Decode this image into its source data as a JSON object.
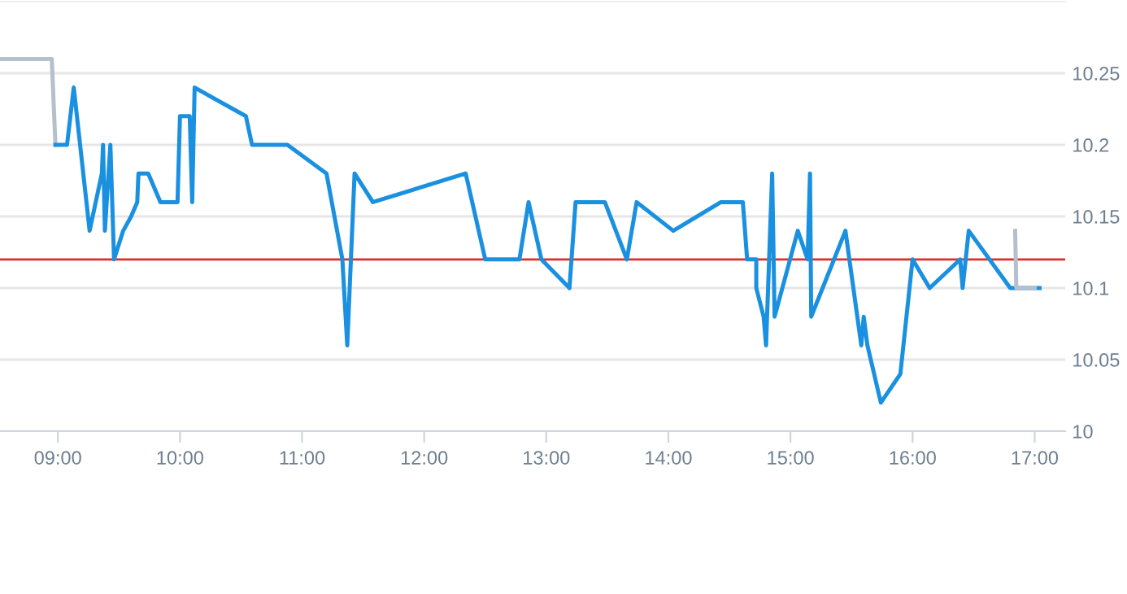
{
  "chart_data": {
    "type": "line",
    "series": [
      {
        "color": "#b4c0cc",
        "x": [
          8.526,
          8.95,
          8.98
        ],
        "values": [
          10.26,
          10.26,
          10.2
        ]
      },
      {
        "color": "#1a90e0",
        "x": [
          8.98,
          9.075,
          9.13,
          9.26,
          9.36,
          9.37,
          9.385,
          9.43,
          9.46,
          9.535,
          9.6,
          9.65,
          9.66,
          9.74,
          9.84,
          9.98,
          10.0,
          10.08,
          10.1,
          10.12,
          10.54,
          10.59,
          10.88,
          11.2,
          11.33,
          11.37,
          11.43,
          11.58,
          12.34,
          12.5,
          12.78,
          12.855,
          12.96,
          13.19,
          13.24,
          13.48,
          13.66,
          13.74,
          14.04,
          14.43,
          14.61,
          14.645,
          14.72,
          14.72,
          14.78,
          14.8,
          14.85,
          14.87,
          15.06,
          15.14,
          15.16,
          15.17,
          15.45,
          15.58,
          15.6,
          15.63,
          15.74,
          15.9,
          16.0,
          16.14,
          16.39,
          16.41,
          16.46,
          16.8,
          17.04
        ],
        "values": [
          10.2,
          10.2,
          10.24,
          10.14,
          10.18,
          10.2,
          10.14,
          10.2,
          10.12,
          10.14,
          10.15,
          10.16,
          10.18,
          10.18,
          10.16,
          10.16,
          10.22,
          10.22,
          10.16,
          10.24,
          10.22,
          10.2,
          10.2,
          10.18,
          10.12,
          10.06,
          10.18,
          10.16,
          10.18,
          10.12,
          10.12,
          10.16,
          10.12,
          10.1,
          10.16,
          10.16,
          10.12,
          10.16,
          10.14,
          10.16,
          10.16,
          10.12,
          10.12,
          10.1,
          10.08,
          10.06,
          10.18,
          10.08,
          10.14,
          10.12,
          10.18,
          10.08,
          10.14,
          10.06,
          10.08,
          10.06,
          10.02,
          10.04,
          10.12,
          10.1,
          10.12,
          10.1,
          10.14,
          10.1,
          10.1
        ]
      },
      {
        "color": "#b4c0cc",
        "x": [
          16.84,
          16.85,
          17.0
        ],
        "values": [
          10.14,
          10.1,
          10.1
        ]
      }
    ],
    "xlim": [
      8.526,
      17.25
    ],
    "xticks": [
      {
        "value": 9,
        "label": "09:00"
      },
      {
        "value": 10,
        "label": "10:00"
      },
      {
        "value": 11,
        "label": "11:00"
      },
      {
        "value": 12,
        "label": "12:00"
      },
      {
        "value": 13,
        "label": "13:00"
      },
      {
        "value": 14,
        "label": "14:00"
      },
      {
        "value": 15,
        "label": "15:00"
      },
      {
        "value": 16,
        "label": "16:00"
      },
      {
        "value": 17,
        "label": "17:00"
      }
    ],
    "ylim": [
      10,
      10.3
    ],
    "yticks": [
      {
        "value": 10,
        "label": "10"
      },
      {
        "value": 10.05,
        "label": "10.05"
      },
      {
        "value": 10.1,
        "label": "10.1"
      },
      {
        "value": 10.15,
        "label": "10.15"
      },
      {
        "value": 10.2,
        "label": "10.2"
      },
      {
        "value": 10.25,
        "label": "10.25"
      }
    ],
    "ref_lines": [
      {
        "axis": "y",
        "value": 10.12,
        "color": "#d9302c"
      }
    ],
    "grid": "y",
    "legend": false,
    "marker": "none",
    "line_style": "solid"
  }
}
